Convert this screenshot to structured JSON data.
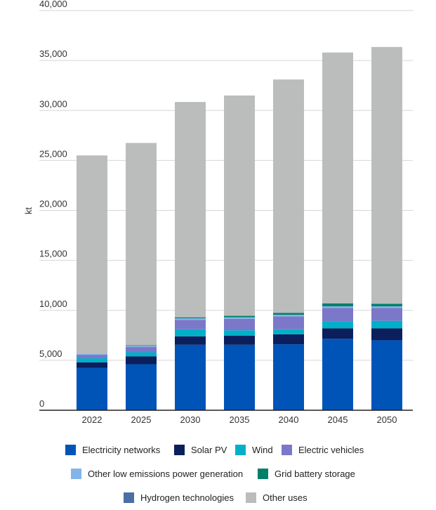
{
  "chart_data": {
    "type": "bar",
    "stacked": true,
    "categories": [
      "2022",
      "2025",
      "2030",
      "2035",
      "2040",
      "2045",
      "2050"
    ],
    "ylabel": "kt",
    "ylim": [
      0,
      40000
    ],
    "yticks": [
      0,
      5000,
      10000,
      15000,
      20000,
      25000,
      30000,
      35000,
      40000
    ],
    "ytick_labels": [
      "0",
      "5,000",
      "10,000",
      "15,000",
      "20,000",
      "25,000",
      "30,000",
      "35,000",
      "40,000"
    ],
    "grid": true,
    "legend_position": "bottom",
    "series": [
      {
        "name": "Electricity networks",
        "color": "#0054b8",
        "values": [
          4250,
          4600,
          6550,
          6550,
          6600,
          7150,
          7000
        ]
      },
      {
        "name": "Solar PV",
        "color": "#0a1f5c",
        "values": [
          550,
          800,
          850,
          900,
          1000,
          1050,
          1200
        ]
      },
      {
        "name": "Wind",
        "color": "#00b0c8",
        "values": [
          400,
          400,
          700,
          550,
          500,
          700,
          750
        ]
      },
      {
        "name": "Electric vehicles",
        "color": "#7b78c9",
        "values": [
          350,
          550,
          950,
          1150,
          1300,
          1350,
          1300
        ]
      },
      {
        "name": "Other low emissions power generation",
        "color": "#82b4e8",
        "values": [
          100,
          100,
          150,
          150,
          150,
          150,
          150
        ]
      },
      {
        "name": "Grid battery storage",
        "color": "#00806b",
        "values": [
          0,
          50,
          100,
          150,
          200,
          300,
          250
        ]
      },
      {
        "name": "Hydrogen technologies",
        "color": "#4a6fa5",
        "values": [
          0,
          0,
          0,
          0,
          0,
          0,
          0
        ]
      },
      {
        "name": "Other uses",
        "color": "#bbbcbc",
        "values": [
          19850,
          20250,
          21550,
          22050,
          23350,
          25100,
          25700
        ]
      }
    ]
  }
}
